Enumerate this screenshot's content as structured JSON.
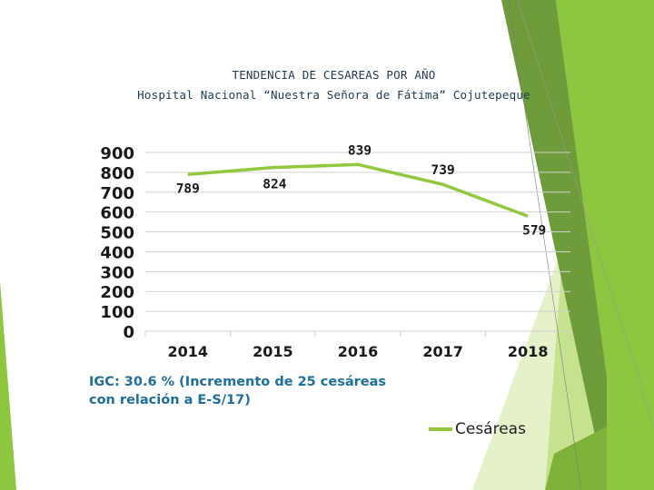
{
  "title": "TENDENCIA DE CESAREAS POR AÑO",
  "subtitle": "Hospital Nacional “Nuestra Señora de Fátima” Cojutepeque",
  "note": "IGC: 30.6 % (Incremento de 25 cesáreas con relación a E-S/17)",
  "colors": {
    "line": "#92c83e",
    "grid": "#d0d0d0",
    "note": "#1f6f9e",
    "deco_dark": "#6f9c3a",
    "deco_mid": "#8dc63f",
    "deco_light": "#c6e28e",
    "deco_pale": "#e4f1c9"
  },
  "chart_data": {
    "type": "line",
    "title": "TENDENCIA DE CESAREAS POR AÑO",
    "categories": [
      "2014",
      "2015",
      "2016",
      "2017",
      "2018"
    ],
    "series": [
      {
        "name": "Cesáreas",
        "values": [
          789,
          824,
          839,
          739,
          579
        ]
      }
    ],
    "data_labels": [
      "789",
      "824",
      "839",
      "739",
      "579"
    ],
    "yticks": [
      "0",
      "100",
      "200",
      "300",
      "400",
      "500",
      "600",
      "700",
      "800",
      "900"
    ],
    "ylim": [
      0,
      900
    ],
    "grid": true,
    "legend": {
      "position": "bottom-right",
      "label": "Cesáreas"
    }
  }
}
